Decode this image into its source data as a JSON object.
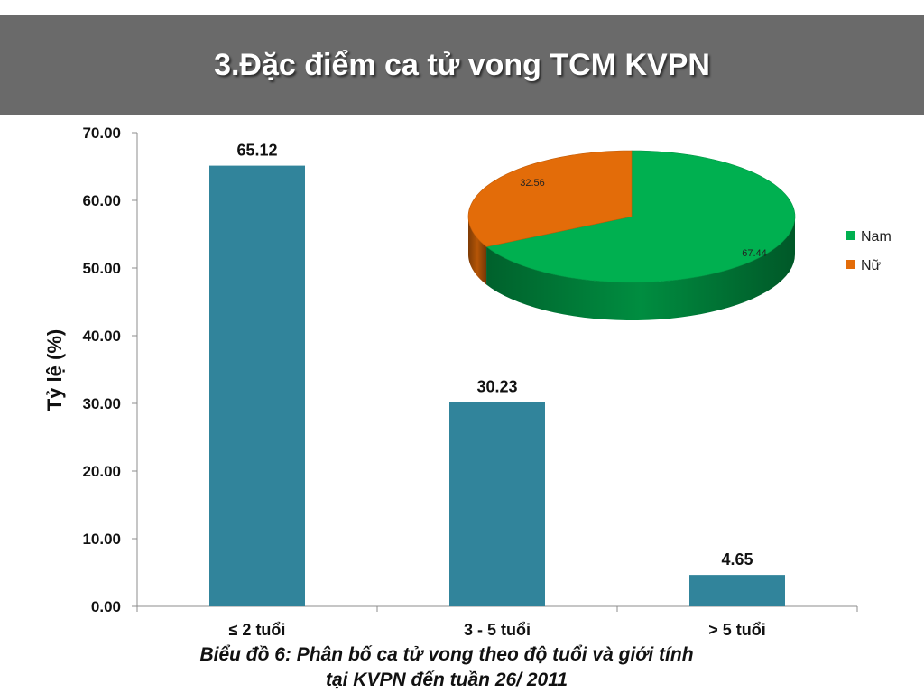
{
  "slide": {
    "title": "3.Đặc điểm ca tử vong TCM KVPN",
    "caption_line1": "Biểu đồ 6: Phân bố ca tử vong theo độ tuổi và giới tính",
    "caption_line2": "tại KVPN đến tuần 26/ 2011"
  },
  "chart_data": [
    {
      "type": "bar",
      "categories": [
        "≤ 2 tuổi",
        "3 - 5 tuổi",
        "> 5 tuổi"
      ],
      "values": [
        65.12,
        30.23,
        4.65
      ],
      "value_labels": [
        "65.12",
        "30.23",
        "4.65"
      ],
      "ylabel": "Tỷ lệ (%)",
      "ylim": [
        0,
        70
      ],
      "y_ticks": [
        "0.00",
        "10.00",
        "20.00",
        "30.00",
        "40.00",
        "50.00",
        "60.00",
        "70.00"
      ],
      "grid": false,
      "legend": "none",
      "color": "#31849b"
    },
    {
      "type": "pie",
      "style": "3d",
      "categories": [
        "Nam",
        "Nữ"
      ],
      "values": [
        67.44,
        32.56
      ],
      "value_labels": [
        "67.44",
        "32.56"
      ],
      "colors": [
        "#00b050",
        "#e36c09"
      ],
      "legend": "right"
    }
  ]
}
